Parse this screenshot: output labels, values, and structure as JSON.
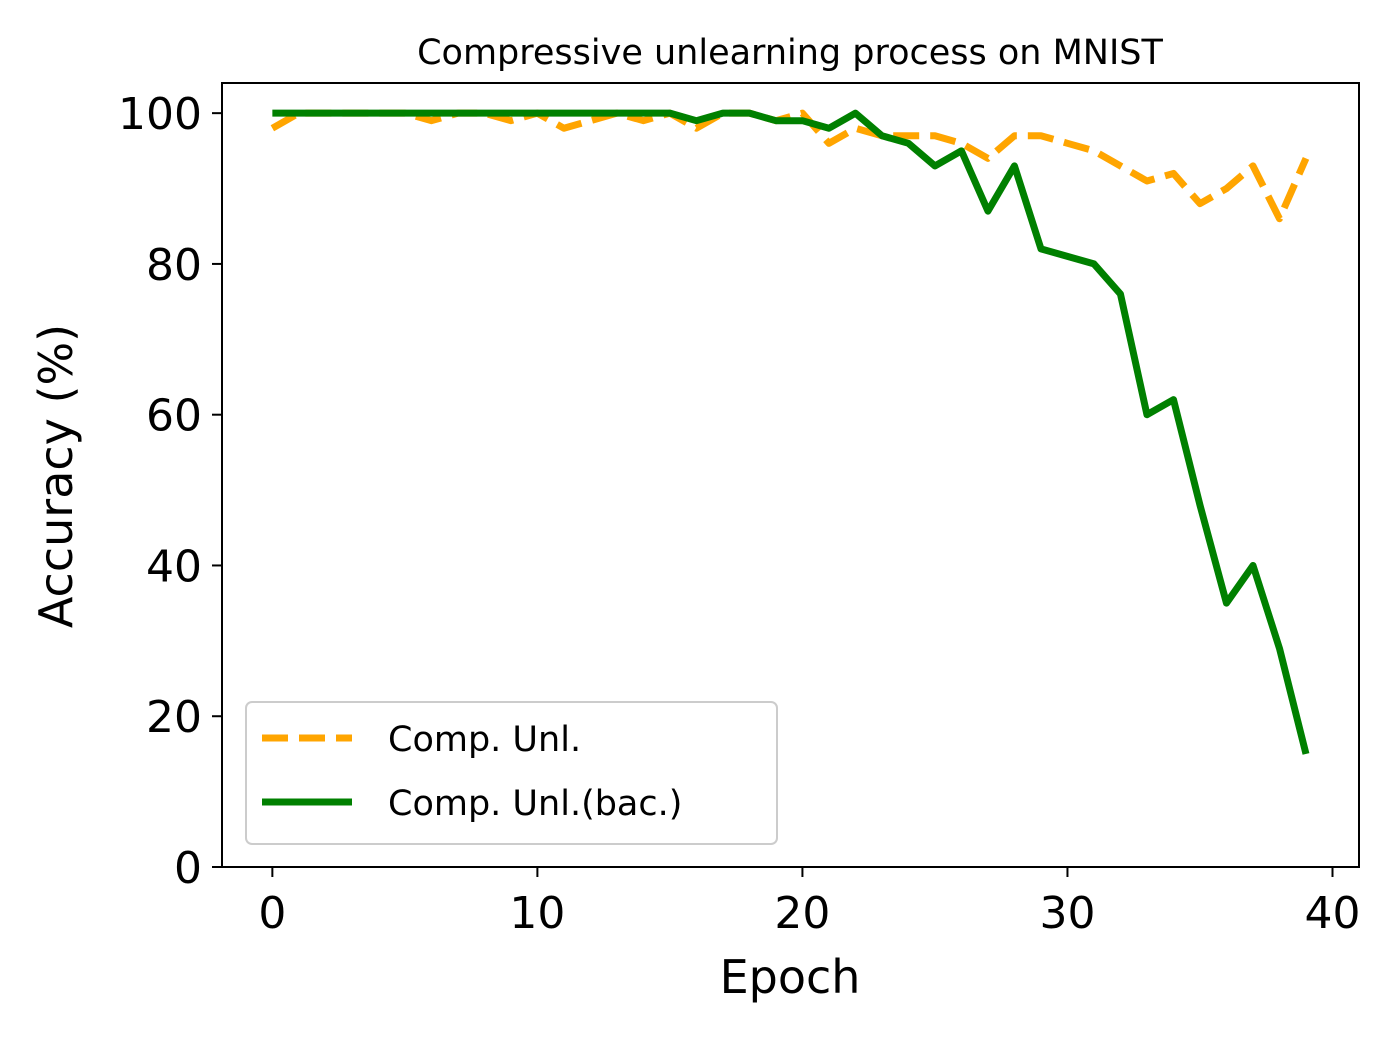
{
  "chart_data": {
    "type": "line",
    "title": "Compressive unlearning process on MNIST",
    "xlabel": "Epoch",
    "ylabel": "Accuracy (%)",
    "xlim": [
      -1.9,
      41.0
    ],
    "ylim": [
      0,
      104
    ],
    "xticks": [
      0,
      10,
      20,
      30,
      40
    ],
    "yticks": [
      0,
      20,
      40,
      60,
      80,
      100
    ],
    "grid": false,
    "legend_position": "lower-left",
    "x": [
      0,
      1,
      2,
      3,
      4,
      5,
      6,
      7,
      8,
      9,
      10,
      11,
      12,
      13,
      14,
      15,
      16,
      17,
      18,
      19,
      20,
      21,
      22,
      23,
      24,
      25,
      26,
      27,
      28,
      29,
      30,
      31,
      32,
      33,
      34,
      35,
      36,
      37,
      38,
      39
    ],
    "series": [
      {
        "name": "Comp. Unl.",
        "color": "#FFA500",
        "style": "dashed",
        "values": [
          98,
          100,
          100,
          100,
          100,
          100,
          99,
          100,
          100,
          99,
          100,
          98,
          99,
          100,
          99,
          100,
          98,
          100,
          100,
          99,
          100,
          96,
          98,
          97,
          97,
          97,
          96,
          94,
          97,
          97,
          96,
          95,
          93,
          91,
          92,
          88,
          90,
          93,
          86,
          94
        ]
      },
      {
        "name": "Comp. Unl.(bac.)",
        "color": "#008000",
        "style": "solid",
        "values": [
          100,
          100,
          100,
          100,
          100,
          100,
          100,
          100,
          100,
          100,
          100,
          100,
          100,
          100,
          100,
          100,
          99,
          100,
          100,
          99,
          99,
          98,
          100,
          97,
          96,
          93,
          95,
          87,
          93,
          82,
          81,
          80,
          76,
          60,
          62,
          48,
          35,
          40,
          29,
          15
        ]
      }
    ]
  }
}
